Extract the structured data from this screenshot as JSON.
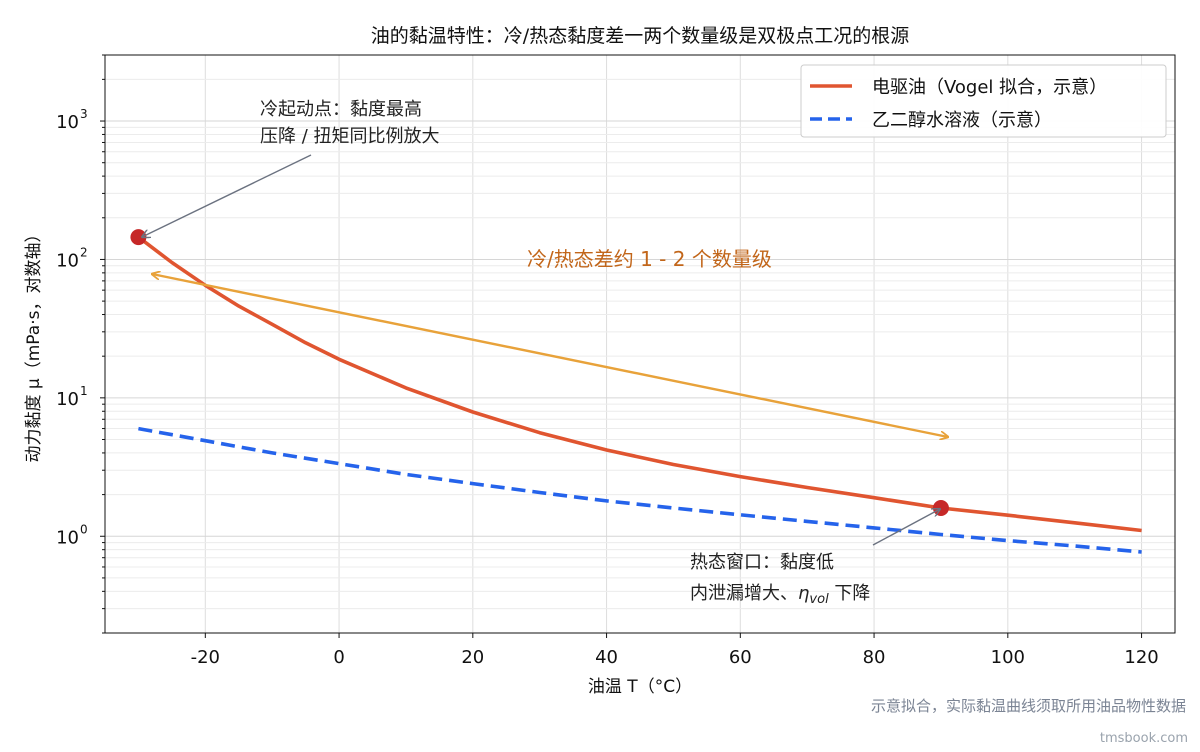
{
  "chart_data": {
    "type": "line",
    "title": "油的黏温特性：冷/热态黏度差一两个数量级是双极点工况的根源",
    "xlabel": "油温 T（°C）",
    "ylabel": "动力黏度 μ（mPa·s，对数轴）",
    "xlim": [
      -35,
      125
    ],
    "ylim": [
      0.2,
      3000
    ],
    "yscale": "log",
    "grid": true,
    "legend_position": "top-right",
    "x_ticks": [
      -20,
      0,
      20,
      40,
      60,
      80,
      100,
      120
    ],
    "x_tick_labels": [
      "-20",
      "0",
      "20",
      "40",
      "60",
      "80",
      "100",
      "120"
    ],
    "y_ticks": [
      1,
      10,
      100,
      1000
    ],
    "y_tick_labels": [
      "10",
      "10",
      "10",
      "10"
    ],
    "y_tick_exponents": [
      "0",
      "1",
      "2",
      "3"
    ],
    "colors": {
      "oil": "#e05530",
      "glycol": "#2563eb",
      "arrow_orange": "#e8a23a",
      "marker": "#c62828",
      "annot_gray": "#6b7280",
      "annot_orange": "#c2661a"
    },
    "series": [
      {
        "name": "电驱油（Vogel 拟合，示意）",
        "style": "solid",
        "x": [
          -30,
          -25,
          -20,
          -15,
          -10,
          -5,
          0,
          10,
          20,
          30,
          40,
          50,
          60,
          70,
          80,
          90,
          100,
          110,
          120
        ],
        "y": [
          145,
          95,
          65,
          46,
          34,
          25,
          19,
          11.8,
          7.9,
          5.6,
          4.2,
          3.3,
          2.7,
          2.25,
          1.9,
          1.6,
          1.42,
          1.25,
          1.1
        ]
      },
      {
        "name": "乙二醇水溶液（示意）",
        "style": "dashed",
        "x": [
          -30,
          -20,
          -10,
          0,
          10,
          20,
          30,
          40,
          50,
          60,
          70,
          80,
          90,
          100,
          110,
          120
        ],
        "y": [
          6.0,
          4.9,
          4.0,
          3.35,
          2.8,
          2.4,
          2.07,
          1.8,
          1.6,
          1.43,
          1.28,
          1.15,
          1.03,
          0.93,
          0.85,
          0.77
        ]
      }
    ],
    "points": [
      {
        "x": -30,
        "y": 145
      },
      {
        "x": 90,
        "y": 1.6
      }
    ],
    "annotations": {
      "cold_line1": "冷起动点：黏度最高",
      "cold_line2": "压降 / 扭矩同比例放大",
      "hot_line1": "热态窗口：黏度低",
      "hot_line2_prefix": "内泄漏增大、",
      "hot_line2_symbol": "η",
      "hot_line2_sub": "vol",
      "hot_line2_suffix": " 下降",
      "range_label": "冷/热态差约 1 - 2 个数量级"
    },
    "footnote": "示意拟合，实际黏温曲线须取所用油品物性数据"
  },
  "watermark": "tmsbook.com"
}
